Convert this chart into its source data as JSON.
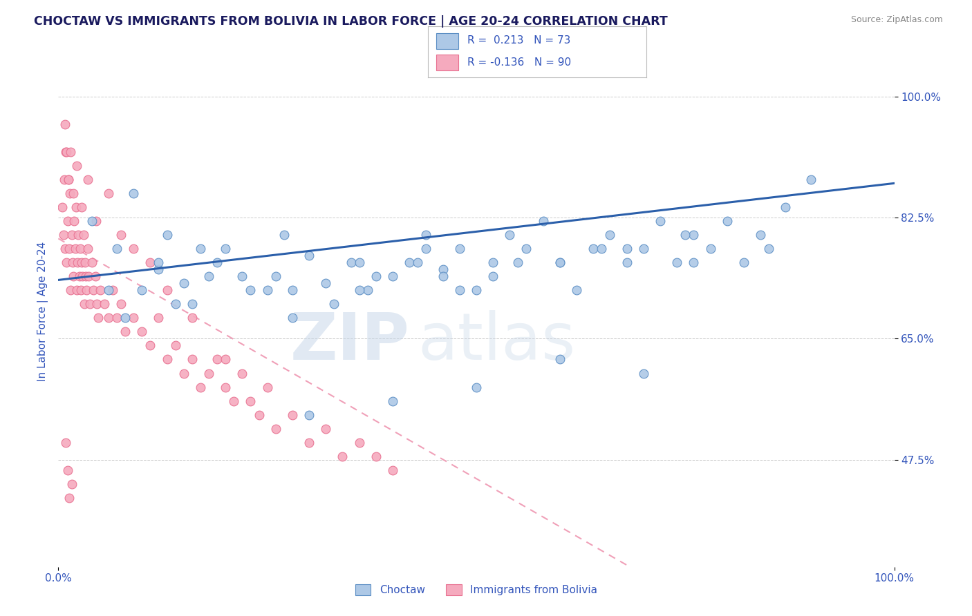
{
  "title": "CHOCTAW VS IMMIGRANTS FROM BOLIVIA IN LABOR FORCE | AGE 20-24 CORRELATION CHART",
  "source": "Source: ZipAtlas.com",
  "ylabel": "In Labor Force | Age 20-24",
  "watermark_zip": "ZIP",
  "watermark_atlas": "atlas",
  "xlim": [
    0.0,
    1.0
  ],
  "ylim": [
    0.32,
    1.06
  ],
  "ytick_vals": [
    0.475,
    0.65,
    0.825,
    1.0
  ],
  "yticklabels": [
    "47.5%",
    "65.0%",
    "82.5%",
    "100.0%"
  ],
  "choctaw_color": "#adc8e6",
  "bolivia_color": "#f5aabe",
  "choctaw_edge": "#5b8ec4",
  "bolivia_edge": "#e87090",
  "trend_choctaw_color": "#2b5faa",
  "trend_bolivia_color": "#f0a0b8",
  "R_choctaw": 0.213,
  "N_choctaw": 73,
  "R_bolivia": -0.136,
  "N_bolivia": 90,
  "choctaw_label": "Choctaw",
  "bolivia_label": "Immigrants from Bolivia",
  "title_color": "#1a1a5e",
  "axis_label_color": "#3355bb",
  "tick_color": "#3355bb",
  "source_color": "#888888",
  "choctaw_x": [
    0.04,
    0.07,
    0.09,
    0.12,
    0.13,
    0.15,
    0.17,
    0.19,
    0.22,
    0.25,
    0.27,
    0.3,
    0.32,
    0.35,
    0.37,
    0.4,
    0.42,
    0.44,
    0.46,
    0.48,
    0.5,
    0.52,
    0.54,
    0.56,
    0.58,
    0.6,
    0.62,
    0.64,
    0.66,
    0.68,
    0.7,
    0.72,
    0.74,
    0.76,
    0.78,
    0.8,
    0.82,
    0.84,
    0.87,
    0.9,
    0.08,
    0.1,
    0.14,
    0.18,
    0.23,
    0.28,
    0.33,
    0.38,
    0.43,
    0.48,
    0.12,
    0.2,
    0.28,
    0.36,
    0.44,
    0.52,
    0.6,
    0.68,
    0.76,
    0.06,
    0.16,
    0.26,
    0.36,
    0.46,
    0.55,
    0.65,
    0.75,
    0.85,
    0.3,
    0.4,
    0.5,
    0.6,
    0.7
  ],
  "choctaw_y": [
    0.82,
    0.78,
    0.86,
    0.75,
    0.8,
    0.73,
    0.78,
    0.76,
    0.74,
    0.72,
    0.8,
    0.77,
    0.73,
    0.76,
    0.72,
    0.74,
    0.76,
    0.8,
    0.75,
    0.78,
    0.72,
    0.76,
    0.8,
    0.78,
    0.82,
    0.76,
    0.72,
    0.78,
    0.8,
    0.76,
    0.78,
    0.82,
    0.76,
    0.8,
    0.78,
    0.82,
    0.76,
    0.8,
    0.84,
    0.88,
    0.68,
    0.72,
    0.7,
    0.74,
    0.72,
    0.68,
    0.7,
    0.74,
    0.76,
    0.72,
    0.76,
    0.78,
    0.72,
    0.76,
    0.78,
    0.74,
    0.76,
    0.78,
    0.76,
    0.72,
    0.7,
    0.74,
    0.72,
    0.74,
    0.76,
    0.78,
    0.8,
    0.78,
    0.54,
    0.56,
    0.58,
    0.62,
    0.6
  ],
  "bolivia_x": [
    0.005,
    0.006,
    0.007,
    0.008,
    0.009,
    0.01,
    0.011,
    0.012,
    0.013,
    0.014,
    0.015,
    0.016,
    0.017,
    0.018,
    0.019,
    0.02,
    0.021,
    0.022,
    0.023,
    0.024,
    0.025,
    0.026,
    0.027,
    0.028,
    0.029,
    0.03,
    0.031,
    0.032,
    0.033,
    0.034,
    0.035,
    0.036,
    0.038,
    0.04,
    0.042,
    0.044,
    0.046,
    0.048,
    0.05,
    0.055,
    0.06,
    0.065,
    0.07,
    0.075,
    0.08,
    0.09,
    0.1,
    0.11,
    0.12,
    0.13,
    0.14,
    0.15,
    0.16,
    0.17,
    0.18,
    0.19,
    0.2,
    0.21,
    0.22,
    0.23,
    0.24,
    0.25,
    0.26,
    0.28,
    0.3,
    0.32,
    0.34,
    0.36,
    0.38,
    0.4,
    0.008,
    0.01,
    0.012,
    0.015,
    0.018,
    0.022,
    0.028,
    0.035,
    0.045,
    0.06,
    0.075,
    0.09,
    0.11,
    0.13,
    0.16,
    0.2,
    0.009,
    0.011,
    0.013,
    0.016
  ],
  "bolivia_y": [
    0.84,
    0.8,
    0.88,
    0.78,
    0.92,
    0.76,
    0.82,
    0.88,
    0.78,
    0.86,
    0.72,
    0.8,
    0.76,
    0.74,
    0.82,
    0.78,
    0.84,
    0.72,
    0.76,
    0.8,
    0.74,
    0.78,
    0.72,
    0.76,
    0.74,
    0.8,
    0.7,
    0.76,
    0.74,
    0.72,
    0.78,
    0.74,
    0.7,
    0.76,
    0.72,
    0.74,
    0.7,
    0.68,
    0.72,
    0.7,
    0.68,
    0.72,
    0.68,
    0.7,
    0.66,
    0.68,
    0.66,
    0.64,
    0.68,
    0.62,
    0.64,
    0.6,
    0.62,
    0.58,
    0.6,
    0.62,
    0.58,
    0.56,
    0.6,
    0.56,
    0.54,
    0.58,
    0.52,
    0.54,
    0.5,
    0.52,
    0.48,
    0.5,
    0.48,
    0.46,
    0.96,
    0.92,
    0.88,
    0.92,
    0.86,
    0.9,
    0.84,
    0.88,
    0.82,
    0.86,
    0.8,
    0.78,
    0.76,
    0.72,
    0.68,
    0.62,
    0.5,
    0.46,
    0.42,
    0.44
  ]
}
